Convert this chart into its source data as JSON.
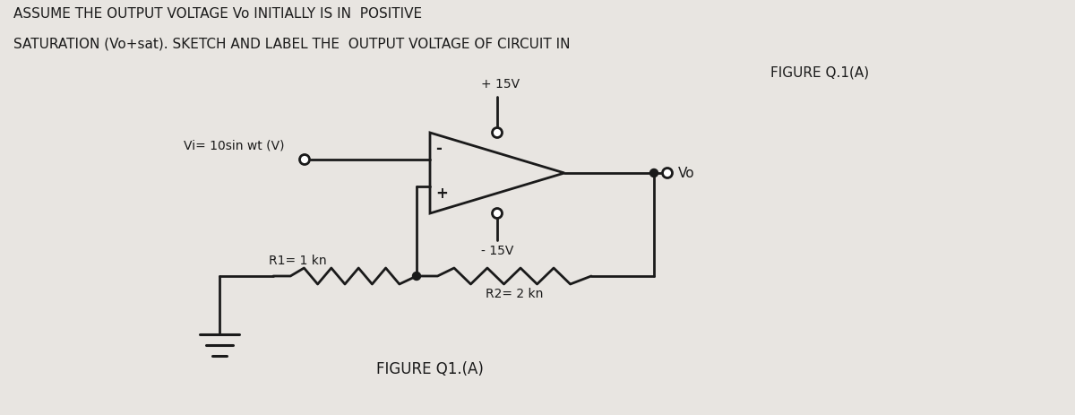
{
  "bg_color": "#e8e5e1",
  "text_color": "#1a1a1a",
  "line_color": "#1a1a1a",
  "fig_label": "FIGURE Q1.(A)",
  "vi_label": "Vi= 10sin wt (V)",
  "plus15": "+ 15V",
  "minus15": "- 15V",
  "vo_label": "Vo",
  "r1_label": "R1= 1 kn",
  "r2_label": "R2= 2 kn",
  "plus_sign": "+",
  "minus_sign": "-",
  "line1": "ASSUME THE OUTPUT VOLTAGE Vo INITIALLY IS IN  POSITIVE",
  "line2": "SATURATION (Vo+sat). SKETCH AND LABEL THE  OUTPUT VOLTAGE OF CIRCUIT IN",
  "line3": "FIGURE Q.1(A)"
}
